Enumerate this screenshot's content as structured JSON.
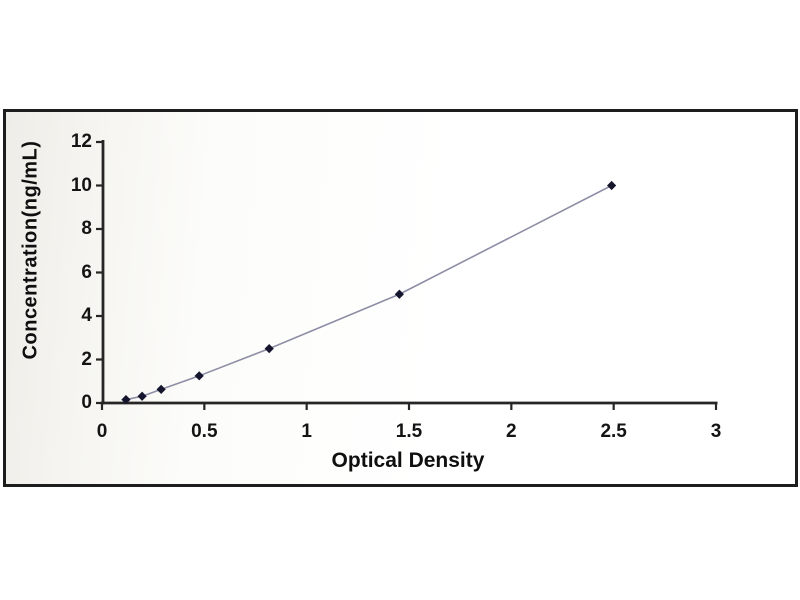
{
  "figure": {
    "outer_background": "#ffffff",
    "panel_border_color": "#1d1d1d",
    "panel_background": "#fbfaf7"
  },
  "chart_data": {
    "type": "line",
    "title": "",
    "xlabel": "Optical Density",
    "ylabel": "Concentration(ng/mL)",
    "x": [
      0.117,
      0.196,
      0.289,
      0.475,
      0.817,
      1.453,
      2.49
    ],
    "y": [
      0.156,
      0.312,
      0.625,
      1.25,
      2.5,
      5,
      10
    ],
    "xlim": [
      0,
      3
    ],
    "ylim": [
      0,
      12
    ],
    "xticks": [
      0,
      0.5,
      1,
      1.5,
      2,
      2.5,
      3
    ],
    "xtick_labels": [
      "0",
      "0.5",
      "1",
      "1.5",
      "2",
      "2.5",
      "3"
    ],
    "yticks": [
      0,
      2,
      4,
      6,
      8,
      10,
      12
    ],
    "ytick_labels": [
      "0",
      "2",
      "4",
      "6",
      "8",
      "10",
      "12"
    ],
    "grid": false,
    "legend": "none",
    "line_color": "#8e8ea6",
    "marker": "diamond",
    "marker_color": "#15152e",
    "axis_color": "#262626",
    "tick_label_color": "#141414"
  }
}
